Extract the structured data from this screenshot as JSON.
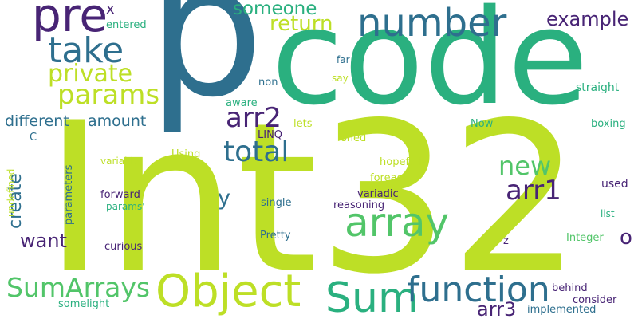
{
  "palette": {
    "background": "#ffffff",
    "yellow_green": "#bddf26",
    "green": "#2ab07f",
    "teal": "#2e6f8e",
    "dark_purple": "#482475",
    "light_green": "#52c569"
  },
  "words": [
    {
      "text": "Int32",
      "color": "yellow_green"
    },
    {
      "text": "p",
      "color": "teal"
    },
    {
      "text": "code",
      "color": "green"
    },
    {
      "text": "pre",
      "color": "dark_purple"
    },
    {
      "text": "number",
      "color": "teal"
    },
    {
      "text": "Object",
      "color": "yellow_green"
    },
    {
      "text": "Sum",
      "color": "green"
    },
    {
      "text": "array",
      "color": "light_green"
    },
    {
      "text": "function",
      "color": "teal"
    },
    {
      "text": "take",
      "color": "teal"
    },
    {
      "text": "SumArrays",
      "color": "light_green"
    },
    {
      "text": "params",
      "color": "yellow_green"
    },
    {
      "text": "private",
      "color": "yellow_green"
    },
    {
      "text": "arr2",
      "color": "dark_purple"
    },
    {
      "text": "total",
      "color": "teal"
    },
    {
      "text": "arr1",
      "color": "dark_purple"
    },
    {
      "text": "new",
      "color": "light_green"
    },
    {
      "text": "someone",
      "color": "green"
    },
    {
      "text": "return",
      "color": "yellow_green"
    },
    {
      "text": "example",
      "color": "dark_purple"
    },
    {
      "text": "different",
      "color": "teal"
    },
    {
      "text": "amount",
      "color": "teal"
    },
    {
      "text": "want",
      "color": "dark_purple"
    },
    {
      "text": "create",
      "color": "teal"
    },
    {
      "text": "arr3",
      "color": "dark_purple"
    },
    {
      "text": "y",
      "color": "teal"
    },
    {
      "text": "o",
      "color": "dark_purple"
    },
    {
      "text": "x",
      "color": "dark_purple"
    },
    {
      "text": "entered",
      "color": "green"
    },
    {
      "text": "far",
      "color": "teal"
    },
    {
      "text": "say",
      "color": "yellow_green"
    },
    {
      "text": "non",
      "color": "teal"
    },
    {
      "text": "straight",
      "color": "green"
    },
    {
      "text": "aware",
      "color": "green"
    },
    {
      "text": "lets",
      "color": "yellow_green"
    },
    {
      "text": "Now",
      "color": "green"
    },
    {
      "text": "boxing",
      "color": "green"
    },
    {
      "text": "LINQ",
      "color": "dark_purple"
    },
    {
      "text": "shed",
      "color": "yellow_green"
    },
    {
      "text": "C",
      "color": "teal"
    },
    {
      "text": "Using",
      "color": "yellow_green"
    },
    {
      "text": "variable",
      "color": "yellow_green"
    },
    {
      "text": "hopefully",
      "color": "yellow_green"
    },
    {
      "text": "foreach",
      "color": "yellow_green"
    },
    {
      "text": "undefined",
      "color": "yellow_green"
    },
    {
      "text": "parameters",
      "color": "teal"
    },
    {
      "text": "forward",
      "color": "dark_purple"
    },
    {
      "text": "variadic",
      "color": "dark_purple"
    },
    {
      "text": "used",
      "color": "dark_purple"
    },
    {
      "text": "reasoning",
      "color": "dark_purple"
    },
    {
      "text": "single",
      "color": "teal"
    },
    {
      "text": "params'",
      "color": "green"
    },
    {
      "text": "list",
      "color": "green"
    },
    {
      "text": "Pretty",
      "color": "teal"
    },
    {
      "text": "curious",
      "color": "dark_purple"
    },
    {
      "text": "Integer",
      "color": "light_green"
    },
    {
      "text": "z",
      "color": "dark_purple"
    },
    {
      "text": "behind",
      "color": "dark_purple"
    },
    {
      "text": "consider",
      "color": "dark_purple"
    },
    {
      "text": "somelight",
      "color": "green"
    },
    {
      "text": "implemented",
      "color": "teal"
    }
  ]
}
